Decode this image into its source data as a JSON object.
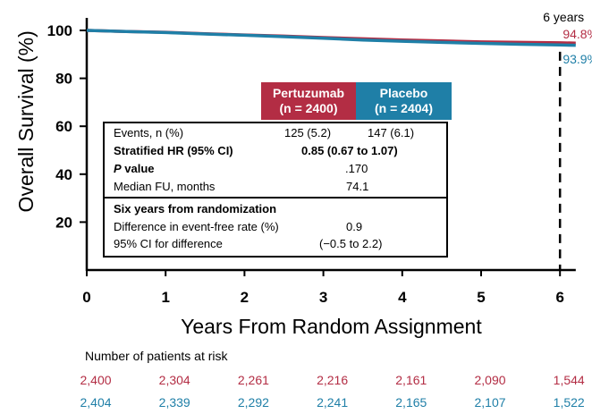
{
  "chart_data": {
    "type": "line",
    "title": "",
    "xlabel": "Years From Random Assignment",
    "ylabel": "Overall Survival (%)",
    "xlim": [
      0,
      6.2
    ],
    "ylim": [
      0,
      100
    ],
    "x_ticks": [
      0,
      1,
      2,
      3,
      4,
      5,
      6
    ],
    "y_ticks": [
      20,
      40,
      60,
      80,
      100
    ],
    "series": [
      {
        "name": "Pertuzumab",
        "color": "#b32d44",
        "x": [
          0,
          0.5,
          1,
          1.5,
          2,
          2.5,
          3,
          3.5,
          4,
          4.5,
          5,
          5.5,
          6,
          6.2
        ],
        "y": [
          100,
          99.5,
          99.2,
          98.6,
          98.1,
          97.6,
          97.0,
          96.5,
          96.0,
          95.6,
          95.2,
          95.0,
          94.8,
          94.7
        ]
      },
      {
        "name": "Placebo",
        "color": "#1f7fa7",
        "x": [
          0,
          0.5,
          1,
          1.5,
          2,
          2.5,
          3,
          3.5,
          4,
          4.5,
          5,
          5.5,
          6,
          6.2
        ],
        "y": [
          100,
          99.5,
          99.1,
          98.5,
          98.0,
          97.4,
          96.7,
          96.0,
          95.5,
          95.0,
          94.6,
          94.2,
          93.9,
          93.8
        ]
      }
    ],
    "annotations": {
      "marker_label": "6 years",
      "marker_x": 6,
      "pertuzumab_end": "94.8%",
      "placebo_end": "93.9%"
    }
  },
  "legend": {
    "pertuzumab": {
      "name": "Pertuzumab",
      "n": "(n = 2400)"
    },
    "placebo": {
      "name": "Placebo",
      "n": "(n = 2404)"
    }
  },
  "stats": {
    "events_label": "Events, n (%)",
    "events_pertuzumab": "125 (5.2)",
    "events_placebo": "147 (6.1)",
    "hr_label": "Stratified HR (95% CI)",
    "hr_value": "0.85 (0.67 to 1.07)",
    "p_label_italic": "P",
    "p_label_rest": " value",
    "p_value": ".170",
    "fu_label": "Median FU, months",
    "fu_value": "74.1",
    "six_year_title": "Six years from randomization",
    "diff_label": "Difference in event-free rate (%)",
    "diff_value": "0.9",
    "ci_label": "95% CI for difference",
    "ci_value": "(−0.5 to 2.2)"
  },
  "risk_table": {
    "title": "Number of patients at risk",
    "pertuzumab": [
      "2,400",
      "2,304",
      "2,261",
      "2,216",
      "2,161",
      "2,090",
      "1,544"
    ],
    "placebo": [
      "2,404",
      "2,339",
      "2,292",
      "2,241",
      "2,165",
      "2,107",
      "1,522"
    ]
  }
}
